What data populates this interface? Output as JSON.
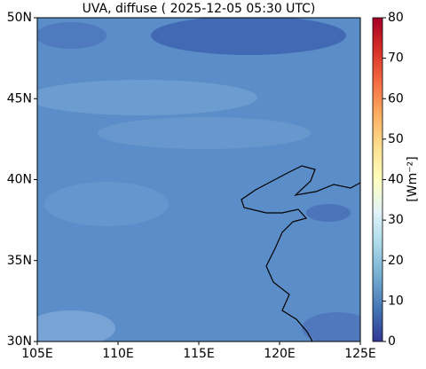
{
  "chart_data": {
    "type": "map",
    "title": "UVA, diffuse ( 2025-12-05 05:30 UTC)",
    "xlim": [
      105,
      125
    ],
    "xticks": [
      {
        "value": 105,
        "label": "105E"
      },
      {
        "value": 110,
        "label": "110E"
      },
      {
        "value": 115,
        "label": "115E"
      },
      {
        "value": 120,
        "label": "120E"
      },
      {
        "value": 125,
        "label": "125E"
      }
    ],
    "ylim": [
      30,
      50
    ],
    "yticks": [
      {
        "value": 30,
        "label": "30N"
      },
      {
        "value": 35,
        "label": "35N"
      },
      {
        "value": 40,
        "label": "40N"
      },
      {
        "value": 45,
        "label": "45N"
      },
      {
        "value": 50,
        "label": "50N"
      }
    ],
    "colorbar": {
      "label": "[Wm⁻²]",
      "lim": [
        0,
        80
      ],
      "ticks": [
        0,
        10,
        20,
        30,
        40,
        50,
        60,
        70,
        80
      ]
    }
  }
}
